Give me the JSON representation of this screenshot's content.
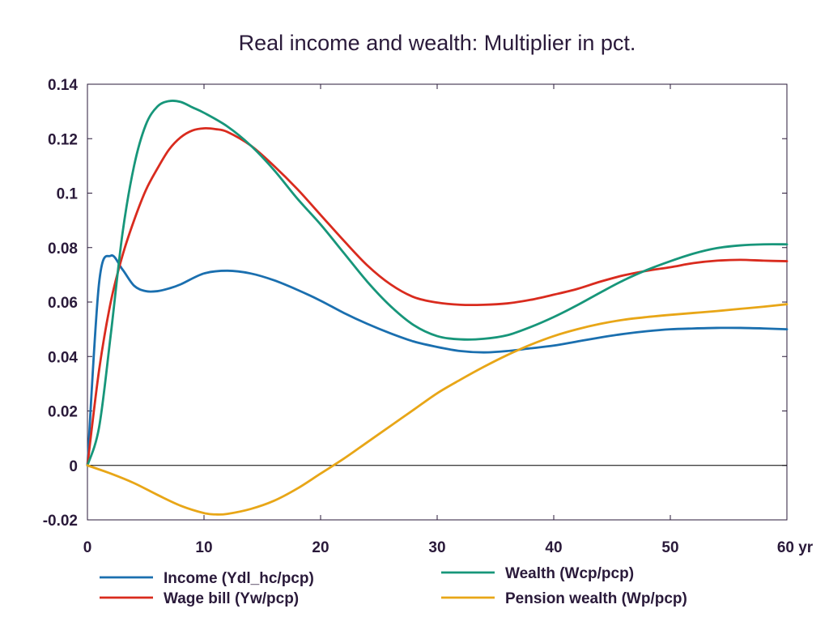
{
  "chart_data": {
    "type": "line",
    "title": "Real income and wealth: Multiplier in pct.",
    "xlabel": "",
    "ylabel": "",
    "x_unit_label": "yr",
    "xlim": [
      0,
      60
    ],
    "ylim": [
      -0.02,
      0.14
    ],
    "x_ticks": [
      0,
      10,
      20,
      30,
      40,
      50,
      60
    ],
    "x_tick_labels": [
      "0",
      "10",
      "20",
      "30",
      "40",
      "50",
      "60 yr"
    ],
    "y_ticks": [
      -0.02,
      0,
      0.02,
      0.04,
      0.06,
      0.08,
      0.1,
      0.12,
      0.14
    ],
    "y_tick_labels": [
      "-0.02",
      "0",
      "0.02",
      "0.04",
      "0.06",
      "0.08",
      "0.1",
      "0.12",
      "0.14"
    ],
    "grid": false,
    "zero_line": true,
    "legend_position": "bottom",
    "series": [
      {
        "name": "Income (Ydl_hc/pcp)",
        "color": "#1a6faf",
        "x": [
          0,
          1,
          2,
          3,
          4,
          5,
          6,
          7,
          8,
          10,
          12,
          14,
          16,
          18,
          20,
          22,
          24,
          26,
          28,
          30,
          32,
          34,
          36,
          38,
          40,
          42,
          44,
          46,
          48,
          50,
          52,
          54,
          56,
          58,
          60
        ],
        "y": [
          0,
          0.067,
          0.077,
          0.072,
          0.066,
          0.064,
          0.064,
          0.065,
          0.0665,
          0.0705,
          0.0715,
          0.0705,
          0.068,
          0.0645,
          0.0605,
          0.056,
          0.052,
          0.0485,
          0.0455,
          0.0435,
          0.042,
          0.0415,
          0.042,
          0.043,
          0.044,
          0.0455,
          0.047,
          0.0483,
          0.0493,
          0.05,
          0.0503,
          0.0505,
          0.0505,
          0.0503,
          0.05
        ]
      },
      {
        "name": "Wage bill (Yw/pcp)",
        "color": "#d92b1e",
        "x": [
          0,
          1,
          2,
          3,
          4,
          5,
          6,
          7,
          8,
          9,
          10,
          11,
          12,
          14,
          16,
          18,
          20,
          22,
          24,
          26,
          28,
          30,
          32,
          34,
          36,
          38,
          40,
          42,
          44,
          46,
          48,
          50,
          52,
          54,
          56,
          58,
          60
        ],
        "y": [
          0,
          0.035,
          0.06,
          0.077,
          0.09,
          0.101,
          0.109,
          0.116,
          0.1205,
          0.123,
          0.1238,
          0.1235,
          0.1225,
          0.1175,
          0.11,
          0.1015,
          0.092,
          0.0825,
          0.0735,
          0.0665,
          0.0618,
          0.0598,
          0.059,
          0.059,
          0.0595,
          0.0608,
          0.0627,
          0.0648,
          0.0675,
          0.0698,
          0.0715,
          0.0728,
          0.0743,
          0.0752,
          0.0755,
          0.0752,
          0.075
        ]
      },
      {
        "name": "Wealth (Wcp/pcp)",
        "color": "#17967a",
        "x": [
          0,
          1,
          2,
          3,
          4,
          5,
          6,
          7,
          8,
          9,
          10,
          12,
          14,
          16,
          18,
          20,
          22,
          24,
          26,
          28,
          30,
          32,
          34,
          36,
          38,
          40,
          42,
          44,
          46,
          48,
          50,
          52,
          54,
          56,
          58,
          60
        ],
        "y": [
          0,
          0.014,
          0.048,
          0.085,
          0.11,
          0.125,
          0.1318,
          0.1338,
          0.1335,
          0.1315,
          0.1295,
          0.1245,
          0.1175,
          0.1085,
          0.098,
          0.0885,
          0.078,
          0.0675,
          0.0585,
          0.0515,
          0.0475,
          0.0463,
          0.0465,
          0.0478,
          0.0508,
          0.0545,
          0.0588,
          0.0635,
          0.068,
          0.0718,
          0.075,
          0.0778,
          0.0798,
          0.0808,
          0.0812,
          0.0812
        ]
      },
      {
        "name": "Pension wealth (Wp/pcp)",
        "color": "#e8a617",
        "x": [
          0,
          2,
          4,
          6,
          8,
          10,
          11,
          12,
          14,
          16,
          18,
          20,
          22,
          24,
          26,
          28,
          30,
          32,
          34,
          36,
          38,
          40,
          42,
          44,
          46,
          48,
          50,
          52,
          54,
          56,
          58,
          60
        ],
        "y": [
          0,
          -0.003,
          -0.0065,
          -0.0108,
          -0.0148,
          -0.0175,
          -0.018,
          -0.0178,
          -0.016,
          -0.013,
          -0.0085,
          -0.003,
          0.0025,
          0.0085,
          0.0145,
          0.0205,
          0.0265,
          0.0315,
          0.0362,
          0.0405,
          0.0443,
          0.0475,
          0.05,
          0.052,
          0.0535,
          0.0545,
          0.0553,
          0.056,
          0.0567,
          0.0575,
          0.0583,
          0.0592
        ]
      }
    ]
  }
}
